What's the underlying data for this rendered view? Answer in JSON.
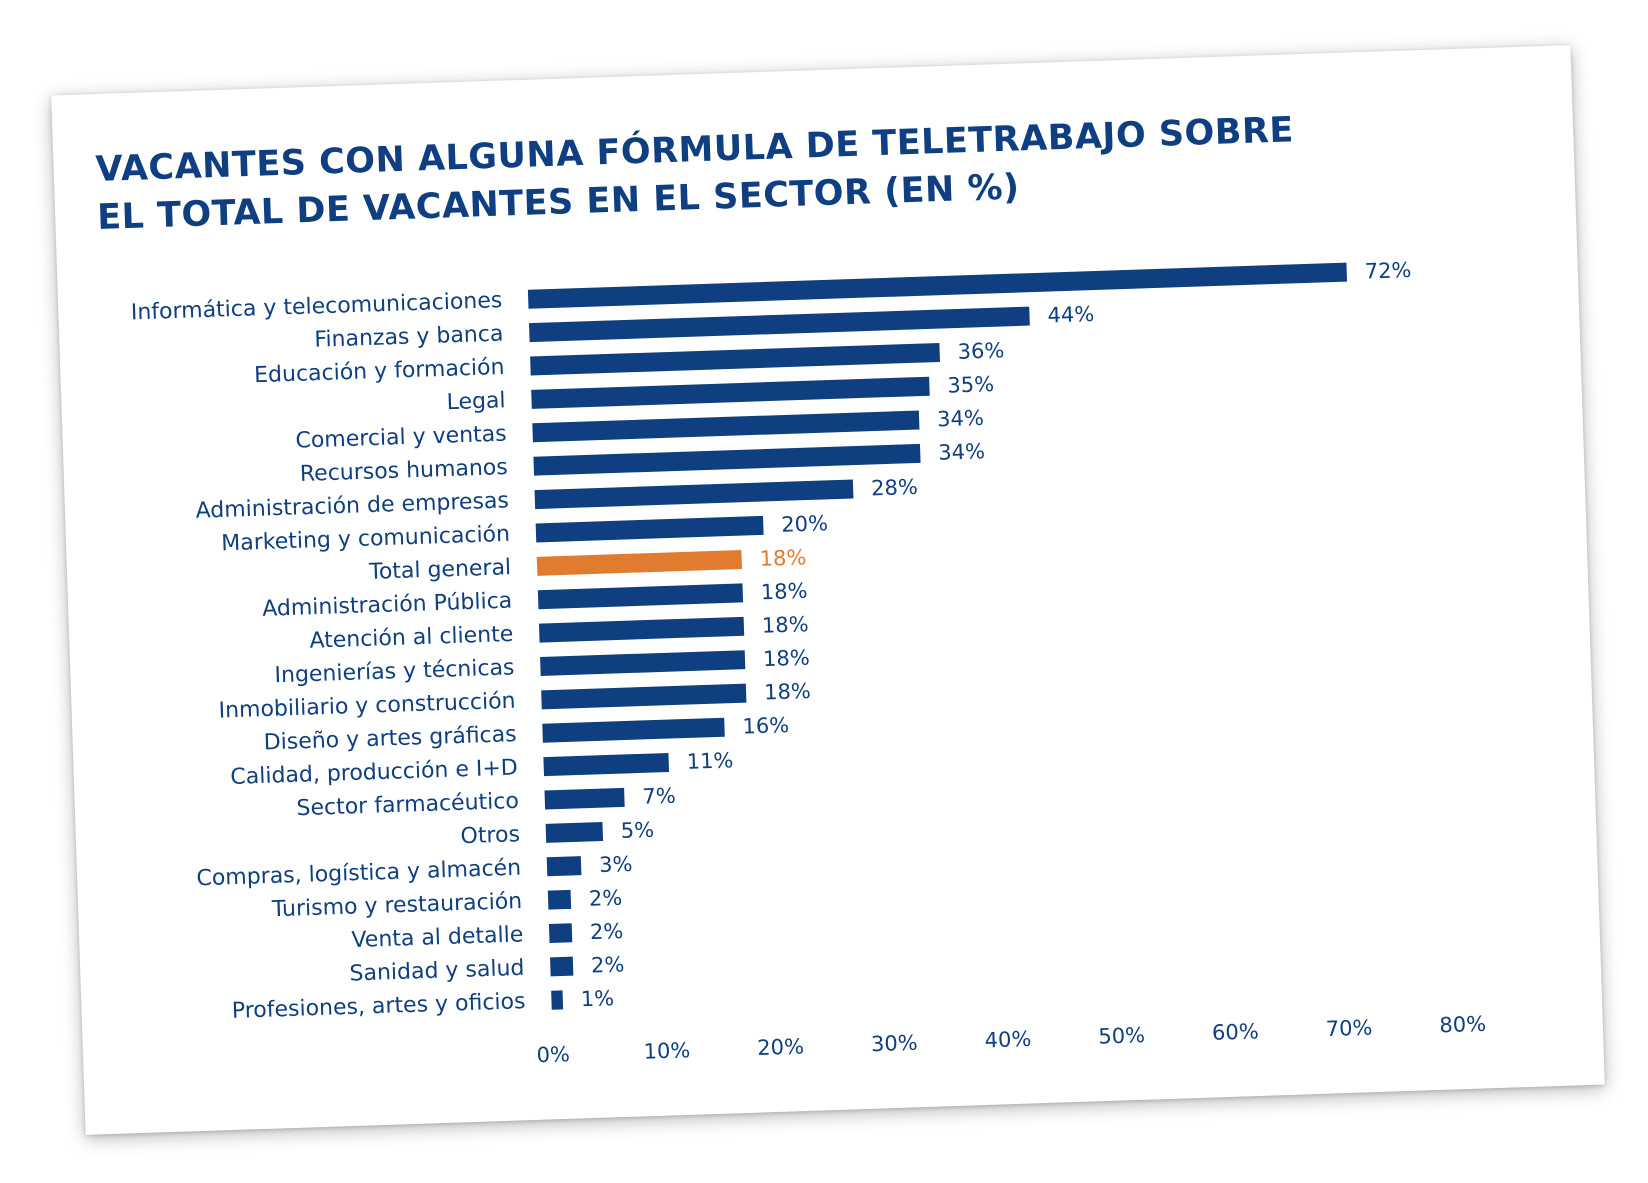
{
  "chart_data": {
    "type": "bar",
    "orientation": "horizontal",
    "title_lines": [
      "VACANTES CON ALGUNA FÓRMULA DE TELETRABAJO SOBRE",
      "EL TOTAL DE VACANTES EN EL SECTOR (EN %)"
    ],
    "categories": [
      "Informática y telecomunicaciones",
      "Finanzas y banca",
      "Educación y formación",
      "Legal",
      "Comercial y ventas",
      "Recursos humanos",
      "Administración de empresas",
      "Marketing y comunicación",
      "Total general",
      "Administración Pública",
      "Atención al cliente",
      "Ingenierías y técnicas",
      "Inmobiliario y construcción",
      "Diseño y artes gráficas",
      "Calidad, producción e I+D",
      "Sector farmacéutico",
      "Otros",
      "Compras, logística y almacén",
      "Turismo y restauración",
      "Venta al detalle",
      "Sanidad y salud",
      "Profesiones, artes y oficios"
    ],
    "values": [
      72,
      44,
      36,
      35,
      34,
      34,
      28,
      20,
      18,
      18,
      18,
      18,
      18,
      16,
      11,
      7,
      5,
      3,
      2,
      2,
      2,
      1
    ],
    "value_labels": [
      "72%",
      "44%",
      "36%",
      "35%",
      "34%",
      "34%",
      "28%",
      "20%",
      "18%",
      "18%",
      "18%",
      "18%",
      "18%",
      "16%",
      "11%",
      "7%",
      "5%",
      "3%",
      "2%",
      "2%",
      "2%",
      "1%"
    ],
    "highlight_category": "Total general",
    "xlim": [
      0,
      80
    ],
    "xticks": [
      "0%",
      "10%",
      "20%",
      "30%",
      "40%",
      "50%",
      "60%",
      "70%",
      "80%"
    ],
    "grid": false,
    "colors": {
      "bar": "#0f3f80",
      "highlight": "#e07b2f",
      "text": "#0f3f80"
    }
  }
}
